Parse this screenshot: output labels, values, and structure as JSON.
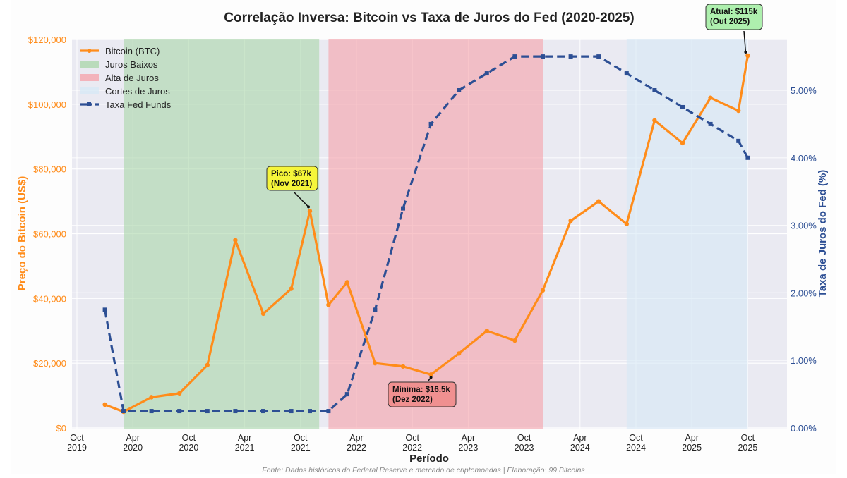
{
  "chart_data": {
    "type": "line",
    "title": "Correlação Inversa: Bitcoin vs Taxa de Juros do Fed (2020-2025)",
    "xlabel": "Período",
    "ylabel_left": "Preço do Bitcoin (US$)",
    "ylabel_right": "Taxa de Juros do Fed (%)",
    "ylim_left": [
      0,
      120000
    ],
    "ylim_right": [
      0,
      5.75
    ],
    "xlim": [
      "2019-09",
      "2026-01"
    ],
    "grid": true,
    "legend_placement": "top-left",
    "x_ticks": [
      {
        "date": "2019-10",
        "label": [
          "Oct",
          "2019"
        ]
      },
      {
        "date": "2020-04",
        "label": [
          "Apr",
          "2020"
        ]
      },
      {
        "date": "2020-10",
        "label": [
          "Oct",
          "2020"
        ]
      },
      {
        "date": "2021-04",
        "label": [
          "Apr",
          "2021"
        ]
      },
      {
        "date": "2021-10",
        "label": [
          "Oct",
          "2021"
        ]
      },
      {
        "date": "2022-04",
        "label": [
          "Apr",
          "2022"
        ]
      },
      {
        "date": "2022-10",
        "label": [
          "Oct",
          "2022"
        ]
      },
      {
        "date": "2023-04",
        "label": [
          "Apr",
          "2023"
        ]
      },
      {
        "date": "2023-10",
        "label": [
          "Oct",
          "2023"
        ]
      },
      {
        "date": "2024-04",
        "label": [
          "Apr",
          "2024"
        ]
      },
      {
        "date": "2024-10",
        "label": [
          "Oct",
          "2024"
        ]
      },
      {
        "date": "2025-04",
        "label": [
          "Apr",
          "2025"
        ]
      },
      {
        "date": "2025-10",
        "label": [
          "Oct",
          "2025"
        ]
      }
    ],
    "y_ticks_left": [
      {
        "v": 0,
        "label": "$0"
      },
      {
        "v": 20000,
        "label": "$20,000"
      },
      {
        "v": 40000,
        "label": "$40,000"
      },
      {
        "v": 60000,
        "label": "$60,000"
      },
      {
        "v": 80000,
        "label": "$80,000"
      },
      {
        "v": 100000,
        "label": "$100,000"
      },
      {
        "v": 120000,
        "label": "$120,000"
      }
    ],
    "y_ticks_right": [
      {
        "v": 0,
        "label": "0.00%"
      },
      {
        "v": 1,
        "label": "1.00%"
      },
      {
        "v": 2,
        "label": "2.00%"
      },
      {
        "v": 3,
        "label": "3.00%"
      },
      {
        "v": 4,
        "label": "4.00%"
      },
      {
        "v": 5,
        "label": "5.00%"
      }
    ],
    "dates": [
      "2020-01",
      "2020-03",
      "2020-06",
      "2020-09",
      "2020-12",
      "2021-03",
      "2021-06",
      "2021-09",
      "2021-11",
      "2022-01",
      "2022-03",
      "2022-06",
      "2022-09",
      "2022-12",
      "2023-03",
      "2023-06",
      "2023-09",
      "2023-12",
      "2024-03",
      "2024-06",
      "2024-09",
      "2024-12",
      "2025-03",
      "2025-06",
      "2025-09",
      "2025-10"
    ],
    "series": [
      {
        "name": "Bitcoin (BTC)",
        "axis": "left",
        "color": "#ff8c1a",
        "values": [
          7200,
          5000,
          9500,
          10700,
          19400,
          58000,
          35300,
          43000,
          67000,
          38000,
          45000,
          20000,
          19000,
          16500,
          23000,
          30000,
          27000,
          42500,
          64000,
          70000,
          63000,
          95000,
          88000,
          102000,
          98000,
          115000
        ]
      },
      {
        "name": "Taxa Fed Funds",
        "axis": "right",
        "color": "#2d4f94",
        "values": [
          1.75,
          0.25,
          0.25,
          0.25,
          0.25,
          0.25,
          0.25,
          0.25,
          0.25,
          0.25,
          0.5,
          1.75,
          3.25,
          4.5,
          5.0,
          5.25,
          5.5,
          5.5,
          5.5,
          5.5,
          5.25,
          5.0,
          4.75,
          4.5,
          4.25,
          4.0
        ]
      }
    ],
    "regions": [
      {
        "name": "Juros Baixos",
        "start": "2020-03",
        "end": "2021-12",
        "color": "#a8d5a8"
      },
      {
        "name": "Alta de Juros",
        "start": "2022-01",
        "end": "2023-12",
        "color": "#f5a0a8"
      },
      {
        "name": "Cortes de Juros",
        "start": "2024-09",
        "end": "2025-10",
        "color": "#d6e8f5"
      }
    ],
    "annotations": [
      {
        "lines": [
          "Pico: $67k",
          "(Nov 2021)"
        ],
        "date": "2021-11",
        "value": 67000,
        "color": "#f5f53a"
      },
      {
        "lines": [
          "Mínima: $16.5k",
          "(Dez 2022)"
        ],
        "date": "2022-12",
        "value": 16500,
        "color": "#f09090"
      },
      {
        "lines": [
          "Atual: $115k",
          "(Out 2025)"
        ],
        "date": "2025-10",
        "value": 115000,
        "color": "#aef0ae"
      }
    ],
    "source": "Fonte: Dados históricos do Federal Reserve e mercado de criptomoedas | Elaboração: 99 Bitcoins"
  }
}
